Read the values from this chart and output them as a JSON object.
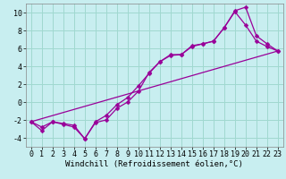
{
  "xlabel": "Windchill (Refroidissement éolien,°C)",
  "background_color": "#c8eef0",
  "grid_color": "#a0d8d0",
  "line_color": "#990099",
  "xlim": [
    -0.5,
    23.5
  ],
  "ylim": [
    -5,
    11
  ],
  "xticks": [
    0,
    1,
    2,
    3,
    4,
    5,
    6,
    7,
    8,
    9,
    10,
    11,
    12,
    13,
    14,
    15,
    16,
    17,
    18,
    19,
    20,
    21,
    22,
    23
  ],
  "yticks": [
    -4,
    -2,
    0,
    2,
    4,
    6,
    8,
    10
  ],
  "line1_x": [
    0,
    1,
    2,
    3,
    4,
    5,
    6,
    7,
    8,
    9,
    10,
    11,
    12,
    13,
    14,
    15,
    16,
    17,
    18,
    19,
    20,
    21,
    22,
    23
  ],
  "line1_y": [
    -2.2,
    -3.2,
    -2.2,
    -2.4,
    -2.6,
    -4.1,
    -2.3,
    -2.0,
    -0.7,
    0.0,
    1.2,
    3.3,
    4.5,
    5.2,
    5.3,
    6.3,
    6.5,
    6.8,
    8.3,
    10.2,
    10.6,
    7.4,
    6.5,
    5.7
  ],
  "line2_x": [
    0,
    1,
    2,
    3,
    4,
    5,
    6,
    7,
    8,
    9,
    10,
    11,
    12,
    13,
    14,
    15,
    16,
    17,
    18,
    19,
    20,
    21,
    22,
    23
  ],
  "line2_y": [
    -2.2,
    -2.8,
    -2.2,
    -2.5,
    -2.8,
    -4.1,
    -2.2,
    -1.5,
    -0.3,
    0.5,
    1.8,
    3.2,
    4.5,
    5.3,
    5.3,
    6.2,
    6.5,
    6.8,
    8.3,
    10.1,
    8.6,
    6.8,
    6.2,
    5.7
  ],
  "line3_x": [
    0,
    23
  ],
  "line3_y": [
    -2.2,
    5.7
  ],
  "markersize": 2.5,
  "linewidth": 0.9,
  "xlabel_fontsize": 6.5,
  "tick_fontsize": 6.0
}
